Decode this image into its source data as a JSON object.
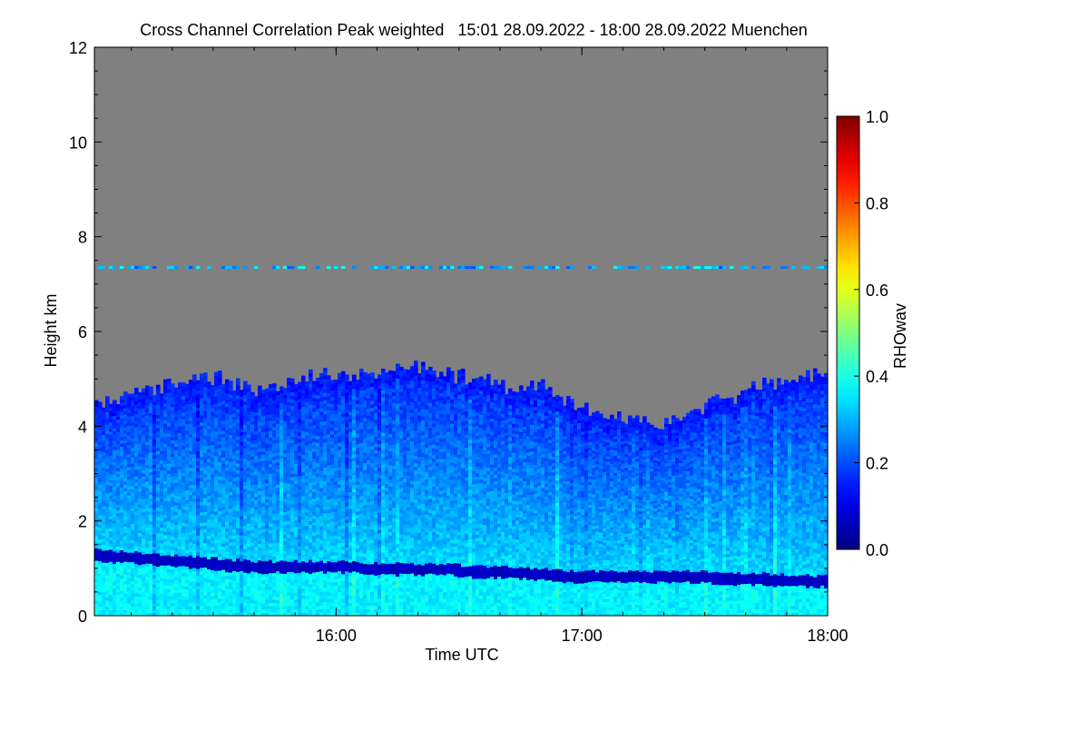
{
  "chart_data": {
    "type": "heatmap",
    "title": "Cross Channel Correlation Peak weighted   15:01 28.09.2022 - 18:00 28.09.2022 Muenchen",
    "xlabel": "Time UTC",
    "ylabel": "Height km",
    "x_range": [
      "15:01",
      "18:00"
    ],
    "ylim": [
      0,
      12
    ],
    "x_ticks": [
      "16:00",
      "17:00",
      "18:00"
    ],
    "y_ticks": [
      "0",
      "2",
      "4",
      "6",
      "8",
      "10",
      "12"
    ],
    "grid": false,
    "colorbar": {
      "label": "RHOwav",
      "range": [
        0.0,
        1.0
      ],
      "ticks": [
        "0.0",
        "0.2",
        "0.4",
        "0.6",
        "0.8",
        "1.0"
      ],
      "colormap": "jet"
    },
    "no_data_color": "#808080",
    "features": {
      "signal_top_km": [
        4.5,
        4.6,
        4.8,
        5.1,
        5.0,
        4.7,
        4.9,
        5.1,
        5.0,
        5.2,
        5.3,
        5.1,
        5.0,
        4.8,
        4.9,
        4.5,
        4.3,
        4.1,
        4.0,
        4.4,
        4.6,
        4.9,
        5.0,
        5.2
      ],
      "low_band_km": [
        1.25,
        1.2,
        1.15,
        1.1,
        1.05,
        1.0,
        1.0,
        1.0,
        1.0,
        0.95,
        0.95,
        0.95,
        0.9,
        0.9,
        0.85,
        0.8,
        0.8,
        0.8,
        0.8,
        0.8,
        0.75,
        0.75,
        0.7,
        0.7
      ],
      "thin_layer_km": 7.35
    }
  }
}
